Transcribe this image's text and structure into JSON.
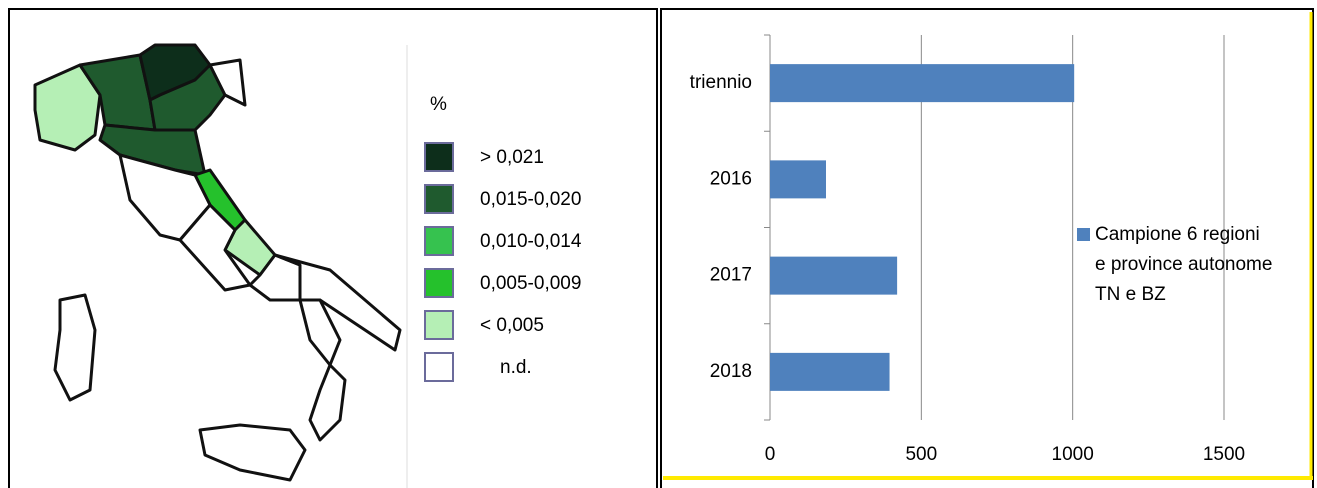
{
  "map_legend": {
    "title": "%",
    "items": [
      {
        "label": "> 0,021",
        "color": "#0d2e1b"
      },
      {
        "label": "0,015-0,020",
        "color": "#1f5a2e"
      },
      {
        "label": "0,010-0,014",
        "color": "#36c24f"
      },
      {
        "label": "0,005-0,009",
        "color": "#25c12c"
      },
      {
        "label": "< 0,005",
        "color": "#b5efb5"
      },
      {
        "label": "n.d.",
        "color": "#ffffff"
      }
    ]
  },
  "chart_data": {
    "type": "bar",
    "orientation": "horizontal",
    "categories": [
      "triennio",
      "2016",
      "2017",
      "2018"
    ],
    "series": [
      {
        "name": "Campione 6 regioni e province autonome TN e BZ",
        "color": "#4f81bd",
        "values": [
          1005,
          185,
          420,
          395
        ]
      }
    ],
    "xlim": [
      0,
      1500
    ],
    "xticks": [
      0,
      500,
      1000,
      1500
    ],
    "grid": true,
    "legend": "right"
  }
}
